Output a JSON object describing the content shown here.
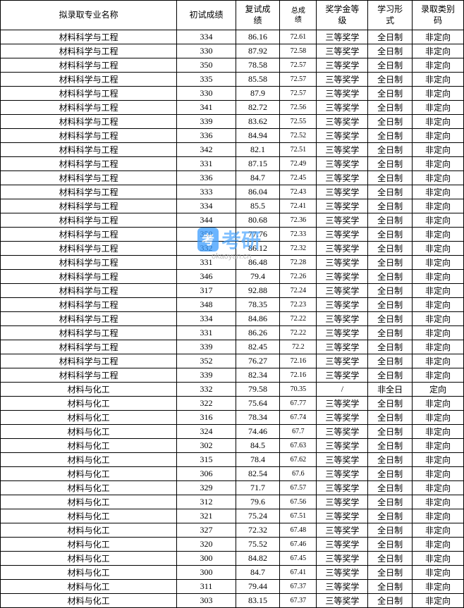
{
  "table": {
    "columns": [
      {
        "key": "major",
        "label": "拟录取专业名称",
        "class": "col-major"
      },
      {
        "key": "initial",
        "label": "初试成绩",
        "class": "col-initial"
      },
      {
        "key": "retest",
        "label": "复试成\n绩",
        "class": "col-retest"
      },
      {
        "key": "total",
        "label": "总成\n绩",
        "class": "col-total"
      },
      {
        "key": "scholarship",
        "label": "奖学金等\n级",
        "class": "col-scholarship"
      },
      {
        "key": "study",
        "label": "学习形\n式",
        "class": "col-study"
      },
      {
        "key": "admit",
        "label": "录取类别\n码",
        "class": "col-admit"
      }
    ],
    "rows": [
      {
        "major": "材料科学与工程",
        "initial": "334",
        "retest": "86.16",
        "total": "72.61",
        "scholarship": "三等奖学",
        "study": "全日制",
        "admit": "非定向"
      },
      {
        "major": "材料科学与工程",
        "initial": "330",
        "retest": "87.92",
        "total": "72.58",
        "scholarship": "三等奖学",
        "study": "全日制",
        "admit": "非定向"
      },
      {
        "major": "材料科学与工程",
        "initial": "350",
        "retest": "78.58",
        "total": "72.57",
        "scholarship": "三等奖学",
        "study": "全日制",
        "admit": "非定向"
      },
      {
        "major": "材料科学与工程",
        "initial": "335",
        "retest": "85.58",
        "total": "72.57",
        "scholarship": "三等奖学",
        "study": "全日制",
        "admit": "非定向"
      },
      {
        "major": "材料科学与工程",
        "initial": "330",
        "retest": "87.9",
        "total": "72.57",
        "scholarship": "三等奖学",
        "study": "全日制",
        "admit": "非定向"
      },
      {
        "major": "材料科学与工程",
        "initial": "341",
        "retest": "82.72",
        "total": "72.56",
        "scholarship": "三等奖学",
        "study": "全日制",
        "admit": "非定向"
      },
      {
        "major": "材料科学与工程",
        "initial": "339",
        "retest": "83.62",
        "total": "72.55",
        "scholarship": "三等奖学",
        "study": "全日制",
        "admit": "非定向"
      },
      {
        "major": "材料科学与工程",
        "initial": "336",
        "retest": "84.94",
        "total": "72.52",
        "scholarship": "三等奖学",
        "study": "全日制",
        "admit": "非定向"
      },
      {
        "major": "材料科学与工程",
        "initial": "342",
        "retest": "82.1",
        "total": "72.51",
        "scholarship": "三等奖学",
        "study": "全日制",
        "admit": "非定向"
      },
      {
        "major": "材料科学与工程",
        "initial": "331",
        "retest": "87.15",
        "total": "72.49",
        "scholarship": "三等奖学",
        "study": "全日制",
        "admit": "非定向"
      },
      {
        "major": "材料科学与工程",
        "initial": "336",
        "retest": "84.7",
        "total": "72.45",
        "scholarship": "三等奖学",
        "study": "全日制",
        "admit": "非定向"
      },
      {
        "major": "材料科学与工程",
        "initial": "333",
        "retest": "86.04",
        "total": "72.43",
        "scholarship": "三等奖学",
        "study": "全日制",
        "admit": "非定向"
      },
      {
        "major": "材料科学与工程",
        "initial": "334",
        "retest": "85.5",
        "total": "72.41",
        "scholarship": "三等奖学",
        "study": "全日制",
        "admit": "非定向"
      },
      {
        "major": "材料科学与工程",
        "initial": "344",
        "retest": "80.68",
        "total": "72.36",
        "scholarship": "三等奖学",
        "study": "全日制",
        "admit": "非定向"
      },
      {
        "major": "材料科学与工程",
        "initial": "350",
        "retest": "77.76",
        "total": "72.33",
        "scholarship": "三等奖学",
        "study": "全日制",
        "admit": "非定向"
      },
      {
        "major": "材料科学与工程",
        "initial": "332",
        "retest": "86.12",
        "total": "72.32",
        "scholarship": "三等奖学",
        "study": "全日制",
        "admit": "非定向"
      },
      {
        "major": "材料科学与工程",
        "initial": "331",
        "retest": "86.48",
        "total": "72.28",
        "scholarship": "三等奖学",
        "study": "全日制",
        "admit": "非定向"
      },
      {
        "major": "材料科学与工程",
        "initial": "346",
        "retest": "79.4",
        "total": "72.26",
        "scholarship": "三等奖学",
        "study": "全日制",
        "admit": "非定向"
      },
      {
        "major": "材料科学与工程",
        "initial": "317",
        "retest": "92.88",
        "total": "72.24",
        "scholarship": "三等奖学",
        "study": "全日制",
        "admit": "非定向"
      },
      {
        "major": "材料科学与工程",
        "initial": "348",
        "retest": "78.35",
        "total": "72.23",
        "scholarship": "三等奖学",
        "study": "全日制",
        "admit": "非定向"
      },
      {
        "major": "材料科学与工程",
        "initial": "334",
        "retest": "84.86",
        "total": "72.22",
        "scholarship": "三等奖学",
        "study": "全日制",
        "admit": "非定向"
      },
      {
        "major": "材料科学与工程",
        "initial": "331",
        "retest": "86.26",
        "total": "72.22",
        "scholarship": "三等奖学",
        "study": "全日制",
        "admit": "非定向"
      },
      {
        "major": "材料科学与工程",
        "initial": "339",
        "retest": "82.45",
        "total": "72.2",
        "scholarship": "三等奖学",
        "study": "全日制",
        "admit": "非定向"
      },
      {
        "major": "材料科学与工程",
        "initial": "352",
        "retest": "76.27",
        "total": "72.16",
        "scholarship": "三等奖学",
        "study": "全日制",
        "admit": "非定向"
      },
      {
        "major": "材料科学与工程",
        "initial": "339",
        "retest": "82.34",
        "total": "72.16",
        "scholarship": "三等奖学",
        "study": "全日制",
        "admit": "非定向"
      },
      {
        "major": "材料与化工",
        "initial": "332",
        "retest": "79.58",
        "total": "70.35",
        "scholarship": "/",
        "study": "非全日",
        "admit": "定向"
      },
      {
        "major": "材料与化工",
        "initial": "322",
        "retest": "75.64",
        "total": "67.77",
        "scholarship": "三等奖学",
        "study": "全日制",
        "admit": "非定向"
      },
      {
        "major": "材料与化工",
        "initial": "316",
        "retest": "78.34",
        "total": "67.74",
        "scholarship": "三等奖学",
        "study": "全日制",
        "admit": "非定向"
      },
      {
        "major": "材料与化工",
        "initial": "324",
        "retest": "74.46",
        "total": "67.7",
        "scholarship": "三等奖学",
        "study": "全日制",
        "admit": "非定向"
      },
      {
        "major": "材料与化工",
        "initial": "302",
        "retest": "84.5",
        "total": "67.63",
        "scholarship": "三等奖学",
        "study": "全日制",
        "admit": "非定向"
      },
      {
        "major": "材料与化工",
        "initial": "315",
        "retest": "78.4",
        "total": "67.62",
        "scholarship": "三等奖学",
        "study": "全日制",
        "admit": "非定向"
      },
      {
        "major": "材料与化工",
        "initial": "306",
        "retest": "82.54",
        "total": "67.6",
        "scholarship": "三等奖学",
        "study": "全日制",
        "admit": "非定向"
      },
      {
        "major": "材料与化工",
        "initial": "329",
        "retest": "71.7",
        "total": "67.57",
        "scholarship": "三等奖学",
        "study": "全日制",
        "admit": "非定向"
      },
      {
        "major": "材料与化工",
        "initial": "312",
        "retest": "79.6",
        "total": "67.56",
        "scholarship": "三等奖学",
        "study": "全日制",
        "admit": "非定向"
      },
      {
        "major": "材料与化工",
        "initial": "321",
        "retest": "75.24",
        "total": "67.51",
        "scholarship": "三等奖学",
        "study": "全日制",
        "admit": "非定向"
      },
      {
        "major": "材料与化工",
        "initial": "327",
        "retest": "72.32",
        "total": "67.48",
        "scholarship": "三等奖学",
        "study": "全日制",
        "admit": "非定向"
      },
      {
        "major": "材料与化工",
        "initial": "320",
        "retest": "75.52",
        "total": "67.46",
        "scholarship": "三等奖学",
        "study": "全日制",
        "admit": "非定向"
      },
      {
        "major": "材料与化工",
        "initial": "300",
        "retest": "84.82",
        "total": "67.45",
        "scholarship": "三等奖学",
        "study": "全日制",
        "admit": "非定向"
      },
      {
        "major": "材料与化工",
        "initial": "300",
        "retest": "84.7",
        "total": "67.41",
        "scholarship": "三等奖学",
        "study": "全日制",
        "admit": "非定向"
      },
      {
        "major": "材料与化工",
        "initial": "311",
        "retest": "79.44",
        "total": "67.37",
        "scholarship": "三等奖学",
        "study": "全日制",
        "admit": "非定向"
      },
      {
        "major": "材料与化工",
        "initial": "303",
        "retest": "83.15",
        "total": "67.37",
        "scholarship": "三等奖学",
        "study": "全日制",
        "admit": "非定向"
      }
    ]
  },
  "watermark": {
    "badge": "考",
    "main": "考研",
    "domain": "okaoyan.cn"
  },
  "colors": {
    "border": "#000000",
    "text": "#000000",
    "background": "#ffffff",
    "watermark_blue": "#3b9dff",
    "watermark_gray": "#aaaaaa"
  }
}
